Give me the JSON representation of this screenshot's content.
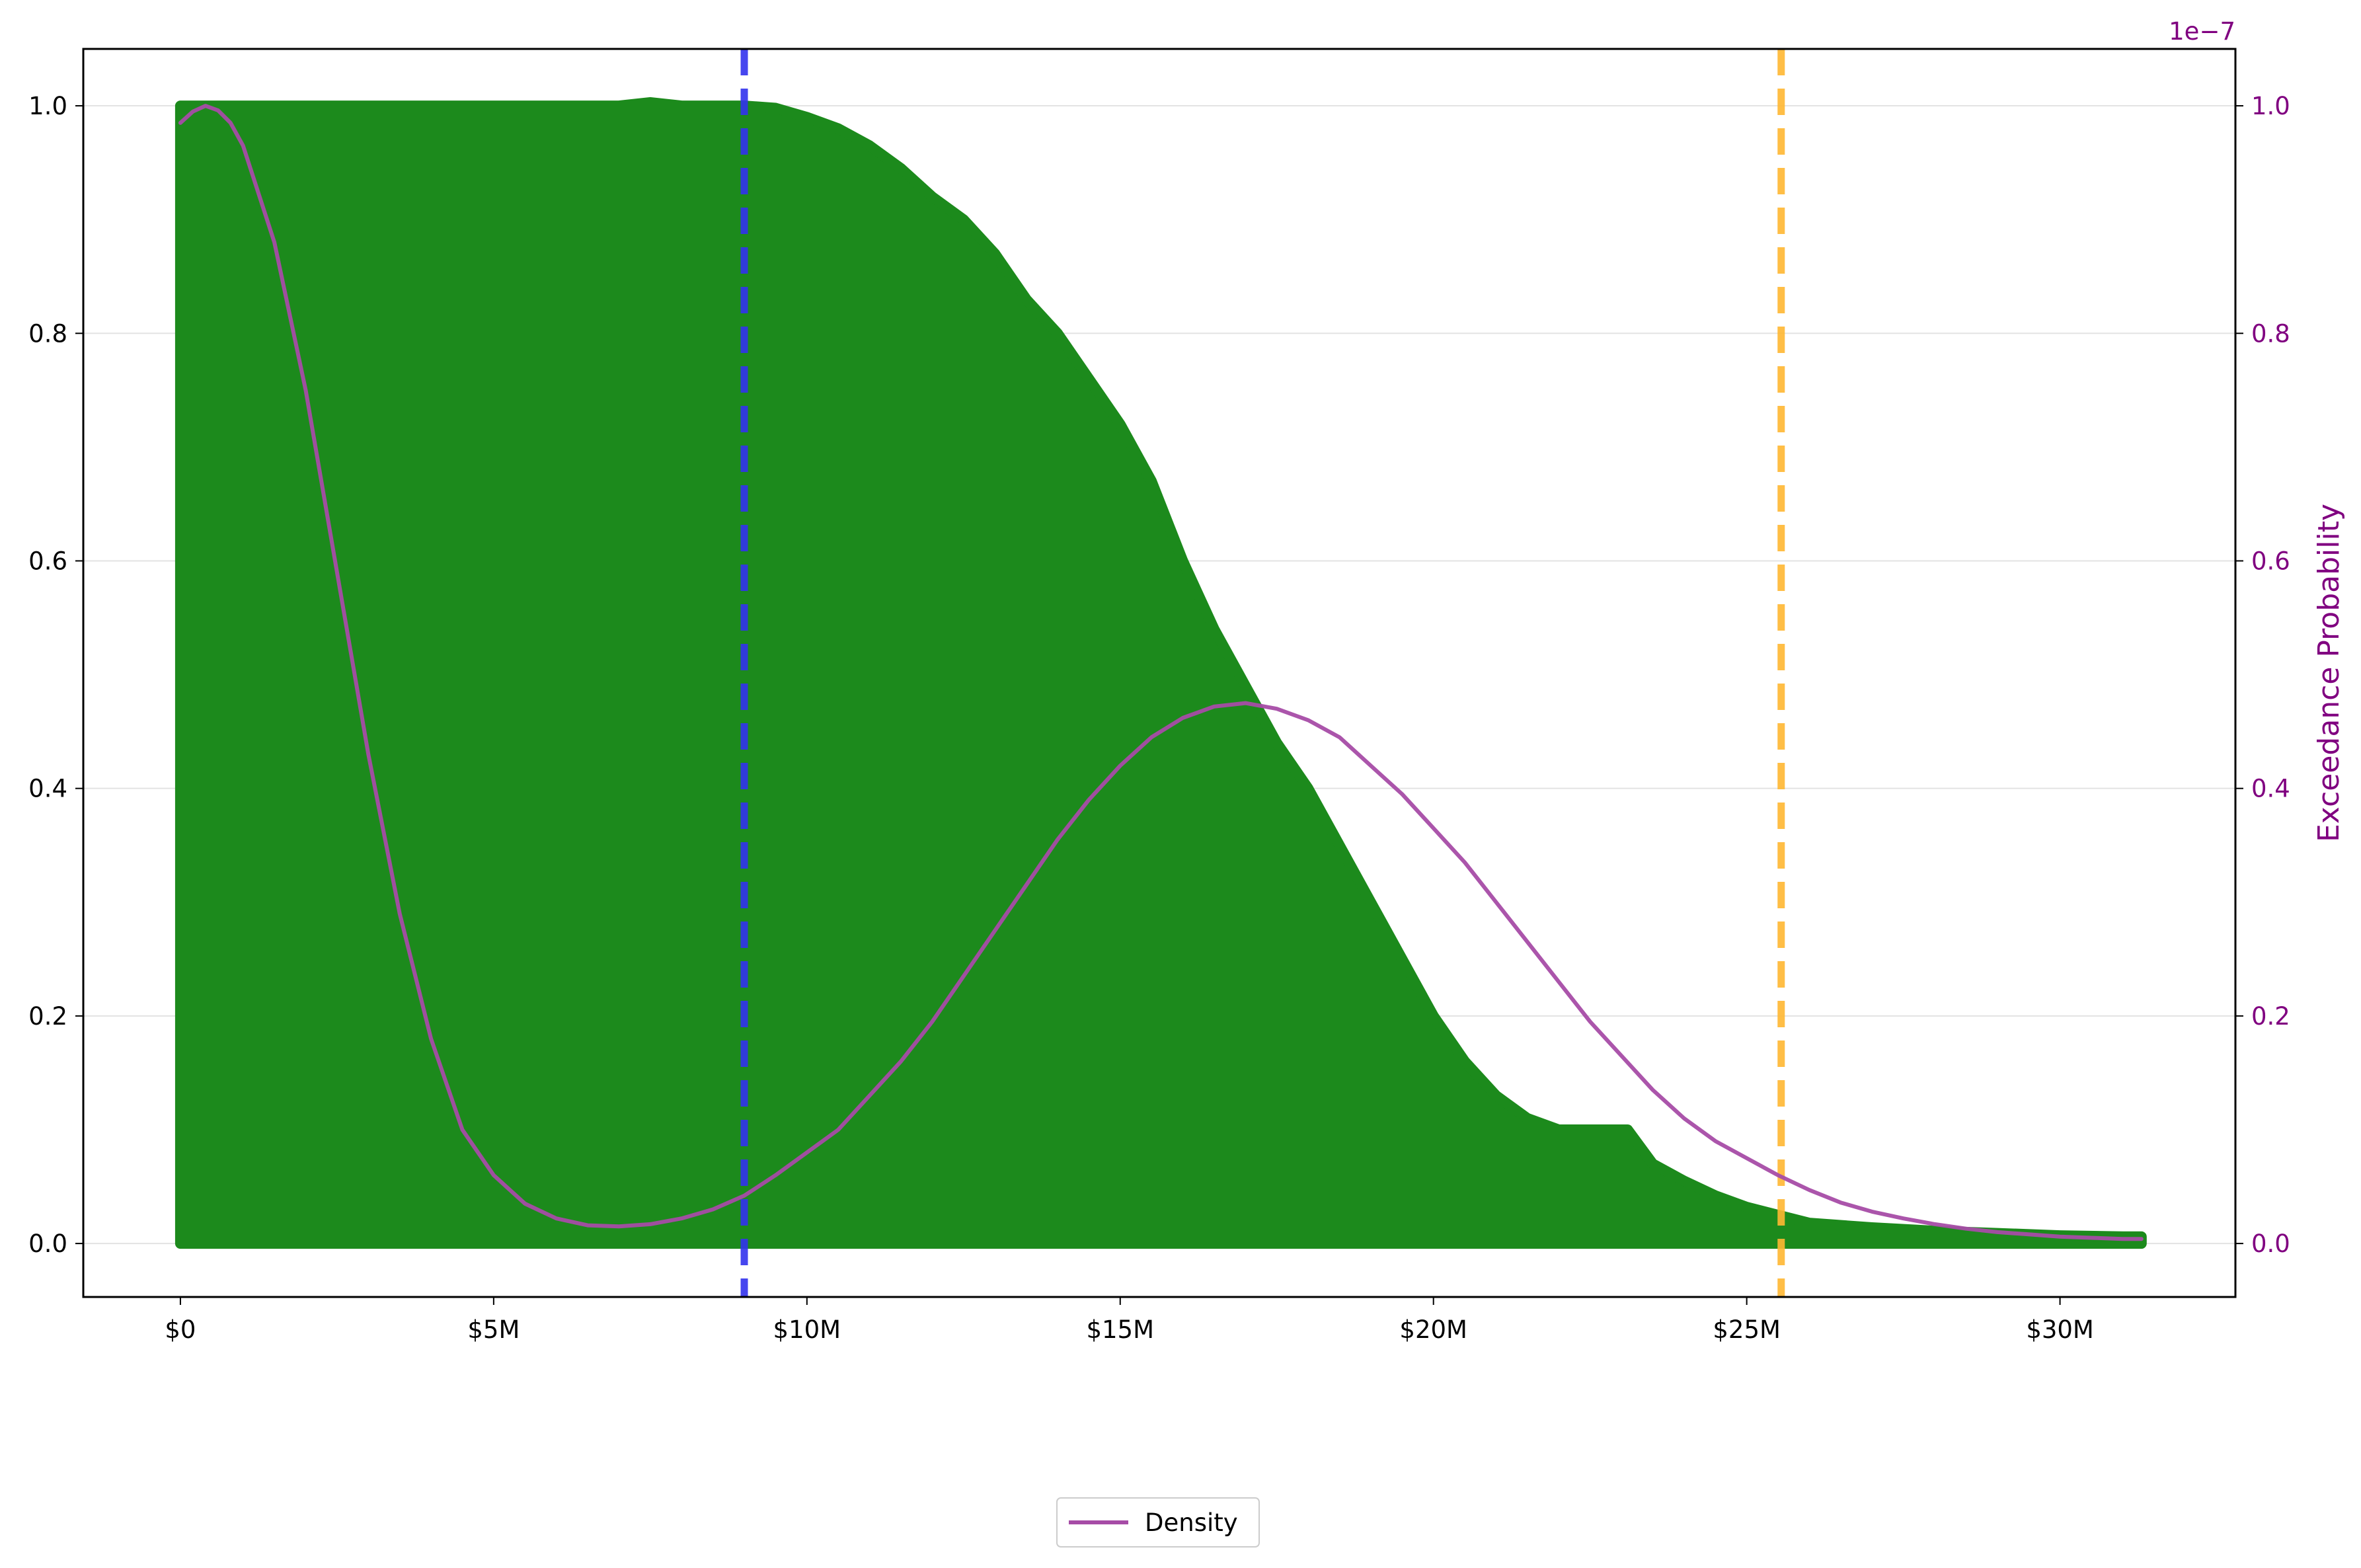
{
  "chart_data": {
    "type": "area",
    "title": "",
    "xlabel": "",
    "ylabel_left": "",
    "ylabel_right": "Exceedance Probability",
    "right_axis_offset_label": "1e−7",
    "xlim": [
      -1550000,
      32800000
    ],
    "ylim_left": [
      -0.047,
      1.05
    ],
    "ylim_right": [
      -0.047,
      1.05
    ],
    "x_ticks": [
      {
        "value": 0,
        "label": "$0"
      },
      {
        "value": 5000000,
        "label": "$5M"
      },
      {
        "value": 10000000,
        "label": "$10M"
      },
      {
        "value": 15000000,
        "label": "$15M"
      },
      {
        "value": 20000000,
        "label": "$20M"
      },
      {
        "value": 25000000,
        "label": "$25M"
      },
      {
        "value": 30000000,
        "label": "$30M"
      }
    ],
    "y_ticks_left": [
      {
        "value": 0.0,
        "label": "0.0"
      },
      {
        "value": 0.2,
        "label": "0.2"
      },
      {
        "value": 0.4,
        "label": "0.4"
      },
      {
        "value": 0.6,
        "label": "0.6"
      },
      {
        "value": 0.8,
        "label": "0.8"
      },
      {
        "value": 1.0,
        "label": "1.0"
      }
    ],
    "y_ticks_right": [
      {
        "value": 0.0,
        "label": "0.0"
      },
      {
        "value": 0.2,
        "label": "0.2"
      },
      {
        "value": 0.4,
        "label": "0.4"
      },
      {
        "value": 0.6,
        "label": "0.6"
      },
      {
        "value": 0.8,
        "label": "0.8"
      },
      {
        "value": 1.0,
        "label": "1.0"
      }
    ],
    "grid": "horizontal",
    "series": [
      {
        "kind": "filled_area",
        "color": "#1c8a1c",
        "x": [
          0,
          1000000,
          2000000,
          3000000,
          4000000,
          5000000,
          6000000,
          7000000,
          7500000,
          8000000,
          9000000,
          9500000,
          10000000,
          10500000,
          11000000,
          11500000,
          12000000,
          12500000,
          13000000,
          13500000,
          14000000,
          14500000,
          15000000,
          15500000,
          16000000,
          16500000,
          17000000,
          17500000,
          18000000,
          18500000,
          19000000,
          19500000,
          20000000,
          20500000,
          21000000,
          21500000,
          22000000,
          22500000,
          23000000,
          23100000,
          23500000,
          24000000,
          24500000,
          25000000,
          25500000,
          26000000,
          27000000,
          28000000,
          29000000,
          30000000,
          31000000,
          31300000
        ],
        "y": [
          1.0,
          1.0,
          1.0,
          1.0,
          1.0,
          1.0,
          1.0,
          1.0,
          1.003,
          1.0,
          1.0,
          0.998,
          0.99,
          0.98,
          0.965,
          0.945,
          0.92,
          0.9,
          0.87,
          0.83,
          0.8,
          0.76,
          0.72,
          0.67,
          0.6,
          0.54,
          0.49,
          0.44,
          0.4,
          0.35,
          0.3,
          0.25,
          0.2,
          0.16,
          0.13,
          0.11,
          0.1,
          0.1,
          0.1,
          0.1,
          0.07,
          0.055,
          0.042,
          0.032,
          0.025,
          0.018,
          0.014,
          0.011,
          0.009,
          0.007,
          0.006,
          0.006
        ]
      },
      {
        "name": "Density",
        "kind": "line",
        "axis": "right",
        "color": "#a64ca6",
        "x": [
          0,
          200000,
          400000,
          600000,
          800000,
          1000000,
          1500000,
          2000000,
          2500000,
          3000000,
          3500000,
          4000000,
          4500000,
          5000000,
          5500000,
          6000000,
          6500000,
          7000000,
          7500000,
          8000000,
          8500000,
          9000000,
          9500000,
          10000000,
          10500000,
          11000000,
          11500000,
          12000000,
          12500000,
          13000000,
          13500000,
          14000000,
          14500000,
          15000000,
          15500000,
          16000000,
          16500000,
          17000000,
          17500000,
          18000000,
          18500000,
          19000000,
          19500000,
          20000000,
          20500000,
          21000000,
          21500000,
          22000000,
          22500000,
          23000000,
          23500000,
          24000000,
          24500000,
          25000000,
          25500000,
          26000000,
          26500000,
          27000000,
          27500000,
          28000000,
          28500000,
          29000000,
          29500000,
          30000000,
          30500000,
          31000000,
          31300000
        ],
        "y": [
          0.985,
          0.995,
          1.0,
          0.996,
          0.985,
          0.965,
          0.88,
          0.75,
          0.59,
          0.43,
          0.29,
          0.18,
          0.1,
          0.06,
          0.035,
          0.022,
          0.016,
          0.015,
          0.017,
          0.022,
          0.03,
          0.042,
          0.06,
          0.08,
          0.1,
          0.13,
          0.16,
          0.195,
          0.235,
          0.275,
          0.315,
          0.355,
          0.39,
          0.42,
          0.445,
          0.462,
          0.472,
          0.475,
          0.47,
          0.46,
          0.445,
          0.42,
          0.395,
          0.365,
          0.335,
          0.3,
          0.265,
          0.23,
          0.195,
          0.165,
          0.135,
          0.11,
          0.09,
          0.075,
          0.06,
          0.047,
          0.036,
          0.028,
          0.022,
          0.017,
          0.013,
          0.01,
          0.008,
          0.006,
          0.005,
          0.004,
          0.004
        ]
      }
    ],
    "vertical_lines": [
      {
        "x": 9000000,
        "color": "#3333ee",
        "style": "dashed"
      },
      {
        "x": 25550000,
        "color": "#ffb833",
        "style": "dashed"
      }
    ],
    "legend": {
      "placement": "bottom-center",
      "entries": [
        "Density"
      ]
    }
  }
}
